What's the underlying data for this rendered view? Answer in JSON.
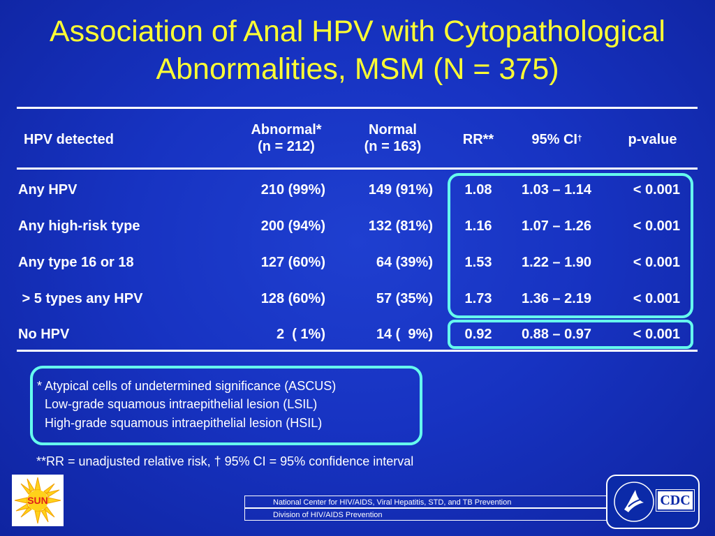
{
  "title": {
    "line1": "Association of Anal HPV with Cytopathological",
    "line2": "Abnormalities, MSM (N = 375)"
  },
  "table": {
    "headers": {
      "hpv": "HPV detected",
      "abnormal_l1": "Abnormal*",
      "abnormal_l2": "(n = 212)",
      "normal_l1": "Normal",
      "normal_l2": "(n = 163)",
      "rr": "RR**",
      "ci": "95% CI",
      "ci_mark": "†",
      "p": "p-value"
    },
    "rows": [
      {
        "label": "Any HPV",
        "abnormal": "210 (99%)",
        "normal": "149 (91%)",
        "rr": "1.08",
        "ci": "1.03 – 1.14",
        "p": "< 0.001"
      },
      {
        "label": "Any high-risk type",
        "abnormal": "200 (94%)",
        "normal": "132 (81%)",
        "rr": "1.16",
        "ci": "1.07 – 1.26",
        "p": "< 0.001"
      },
      {
        "label": "Any type 16 or 18",
        "abnormal": "127 (60%)",
        "normal": "64 (39%)",
        "rr": "1.53",
        "ci": "1.22 – 1.90",
        "p": "< 0.001"
      },
      {
        "label": " > 5 types any HPV",
        "abnormal": "128 (60%)",
        "normal": "57 (35%)",
        "rr": "1.73",
        "ci": "1.36 – 2.19",
        "p": "< 0.001"
      },
      {
        "label": "No HPV",
        "abnormal": "2  ( 1%)",
        "normal": "14 (  9%)",
        "rr": "0.92",
        "ci": "0.88 – 0.97",
        "p": "< 0.001"
      }
    ]
  },
  "footnotes": {
    "abnormal_def_1": "* Atypical cells of undetermined significance (ASCUS)",
    "abnormal_def_2": "Low-grade squamous intraepithelial lesion (LSIL)",
    "abnormal_def_3": "High-grade squamous intraepithelial lesion (HSIL)",
    "rr_def": "**RR = unadjusted relative risk, † 95% CI = 95% confidence interval"
  },
  "footer": {
    "banner1": "National Center for HIV/AIDS, Viral Hepatitis, STD, and TB Prevention",
    "banner2": "Division of HIV/AIDS Prevention",
    "sun_logo_text": "SUN",
    "cdc_logo_text": "CDC"
  },
  "colors": {
    "background": "#1733c2",
    "title": "#ffff33",
    "highlight_box": "#66ffee"
  }
}
